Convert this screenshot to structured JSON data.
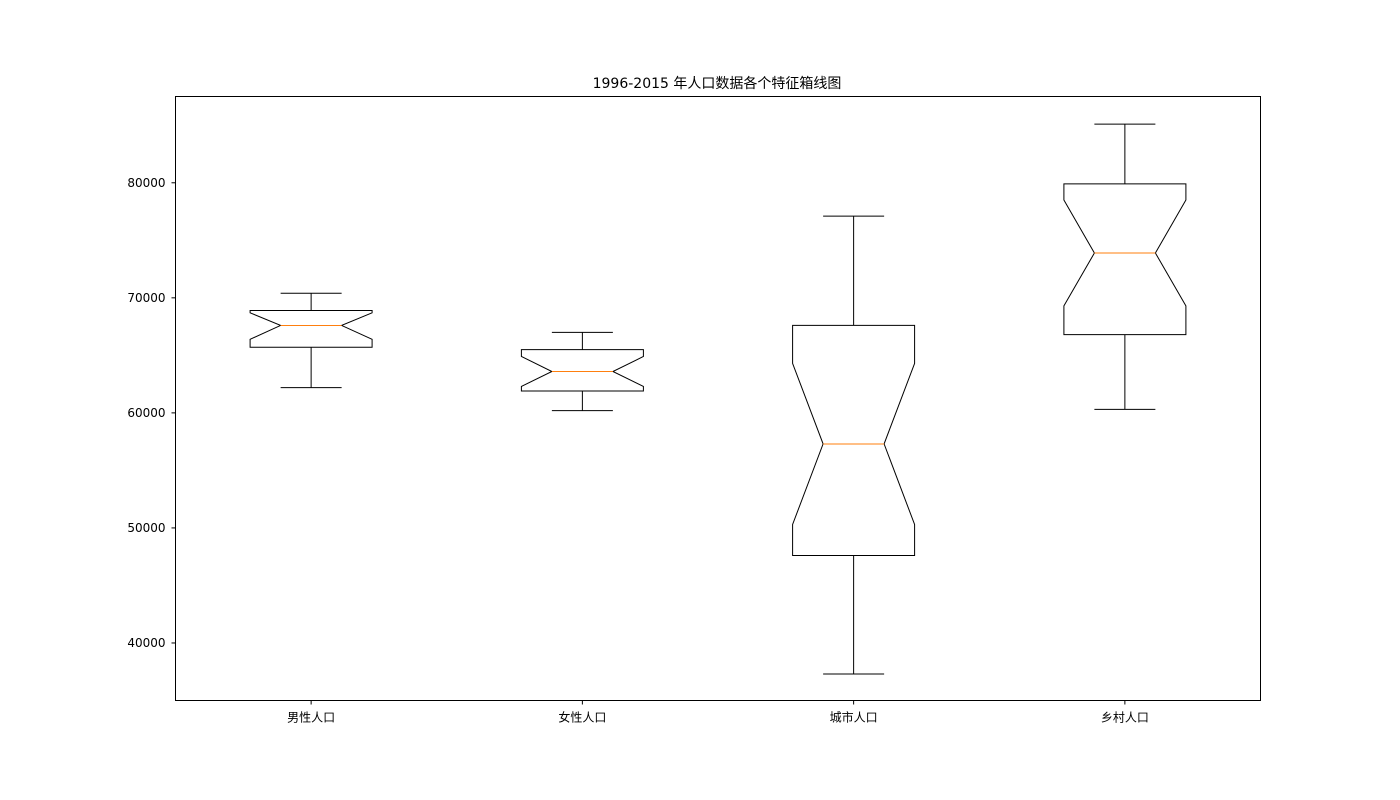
{
  "chart_data": {
    "type": "box",
    "notched": true,
    "title": "1996-2015 年人口数据各个特征箱线图",
    "xlabel": "",
    "ylabel": "",
    "categories": [
      "男性人口",
      "女性人口",
      "城市人口",
      "乡村人口"
    ],
    "ylim": [
      35000,
      87500
    ],
    "yticks": [
      40000,
      50000,
      60000,
      70000,
      80000
    ],
    "ytick_labels": [
      "40000",
      "50000",
      "60000",
      "70000",
      "80000"
    ],
    "boxes": [
      {
        "name": "男性人口",
        "whislo": 62200,
        "q1": 65700,
        "med": 67600,
        "q3": 68900,
        "whishi": 70400,
        "notch_lo": 66400,
        "notch_hi": 68700
      },
      {
        "name": "女性人口",
        "whislo": 60200,
        "q1": 61900,
        "med": 63600,
        "q3": 65500,
        "whishi": 67000,
        "notch_lo": 62300,
        "notch_hi": 64900
      },
      {
        "name": "城市人口",
        "whislo": 37300,
        "q1": 47600,
        "med": 57300,
        "q3": 67600,
        "whishi": 77100,
        "notch_lo": 50300,
        "notch_hi": 64300
      },
      {
        "name": "乡村人口",
        "whislo": 60300,
        "q1": 66800,
        "med": 73900,
        "q3": 79900,
        "whishi": 85100,
        "notch_lo": 69300,
        "notch_hi": 78500
      }
    ],
    "grid": false,
    "colors": {
      "box": "#000000",
      "median": "#ff7f0e",
      "axes": "#000000"
    }
  }
}
